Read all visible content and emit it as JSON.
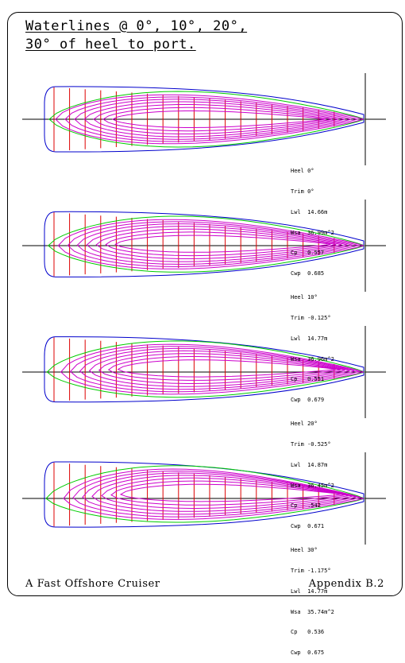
{
  "title": {
    "line1": "Waterlines @ 0°, 10°, 20°,",
    "line2": "30° of heel to port."
  },
  "footer": {
    "left": "A Fast Offshore Cruiser",
    "right": "Appendix B.2"
  },
  "colors": {
    "outline": "#0000cc",
    "station": "#dd0000",
    "waterline": "#cc00cc",
    "deck": "#00cc00",
    "axis": "#000000"
  },
  "views": [
    {
      "heel_deg": 0,
      "stats": [
        "Heel 0°",
        "Trim 0°",
        "Lwl  14.66m",
        "Wsa  36.99m^2",
        "Cp   0.557",
        "Cwp  0.685"
      ]
    },
    {
      "heel_deg": 10,
      "stats": [
        "Heel 10°",
        "Trim -0.125°",
        "Lwl  14.77m",
        "Wsa  36.96m^2",
        "Cp   0.551",
        "Cwp  0.679"
      ]
    },
    {
      "heel_deg": 20,
      "stats": [
        "Heel 20°",
        "Trim -0.525°",
        "Lwl  14.87m",
        "Wsa  36.45m^2",
        "Cp   .542",
        "Cwp  0.671"
      ]
    },
    {
      "heel_deg": 30,
      "stats": [
        "Heel 30°",
        "Trim -1.175°",
        "Lwl  14.77m",
        "Wsa  35.74m^2",
        "Cp   0.536",
        "Cwp  0.675"
      ]
    }
  ]
}
